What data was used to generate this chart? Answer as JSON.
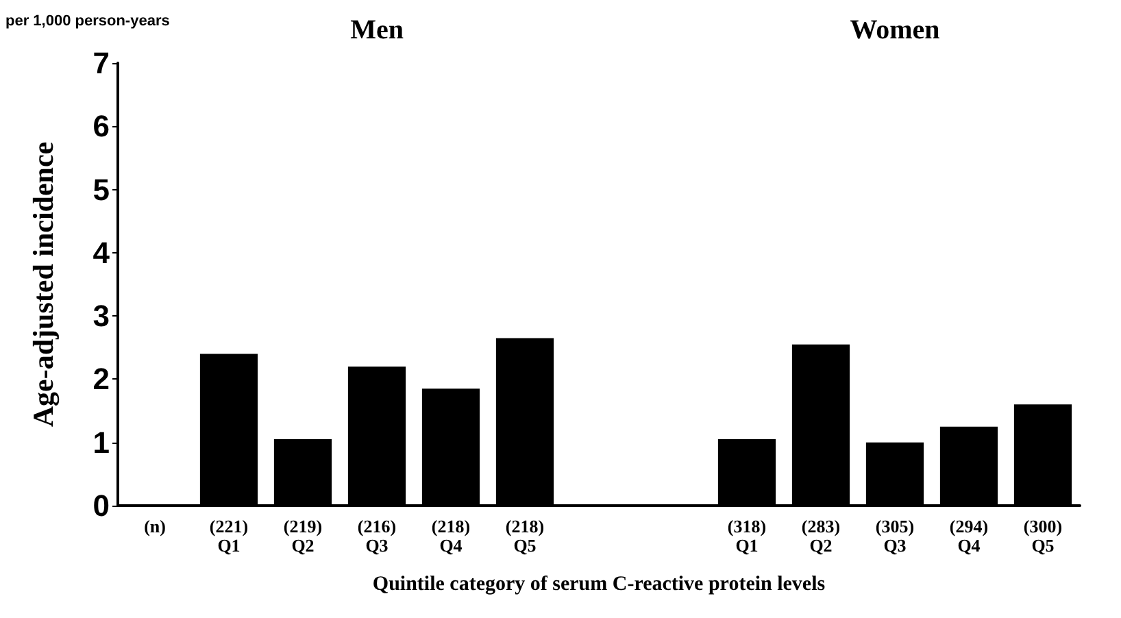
{
  "chart_data": {
    "type": "bar",
    "ylabel": "Age-adjusted incidence",
    "xlabel": "Quintile category of serum C-reactive protein levels",
    "annotations": [
      "per 1,000 person-years",
      "Men",
      "Women"
    ],
    "categories": [
      "(n)",
      "(221)\nQ1",
      "(219)\nQ2",
      "(216)\nQ3",
      "(218)\nQ4",
      "(218)\nQ5",
      null,
      null,
      "(318)\nQ1",
      "(283)\nQ2",
      "(305)\nQ3",
      "(294)\nQ4",
      "(300)\nQ5"
    ],
    "series": [
      {
        "color": "#000000",
        "values": [
          null,
          2.4,
          1.05,
          2.2,
          1.85,
          2.65,
          null,
          null,
          1.05,
          2.55,
          1.0,
          1.25,
          1.6
        ]
      }
    ],
    "ylim": [
      0,
      7
    ],
    "yticks": [
      0,
      1,
      2,
      3,
      4,
      5,
      6,
      7
    ],
    "grid": false
  }
}
